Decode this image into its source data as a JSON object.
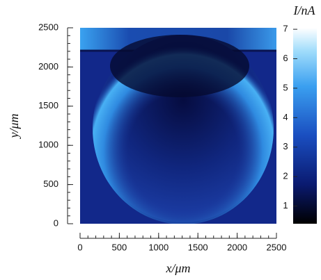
{
  "chart_data": {
    "type": "heatmap",
    "xlabel": "x/μm",
    "ylabel": "y/μm",
    "colorbar_label": "I/nA",
    "xlim": [
      0,
      2500
    ],
    "xticks": [
      0,
      500,
      1000,
      1500,
      2000,
      2500
    ],
    "ylim": [
      0,
      2500
    ],
    "yticks": [
      0,
      500,
      1000,
      1500,
      2000,
      2500
    ],
    "clim": [
      0.4,
      7.05
    ],
    "cticks": [
      1,
      2,
      3,
      4,
      5,
      6,
      7
    ]
  }
}
